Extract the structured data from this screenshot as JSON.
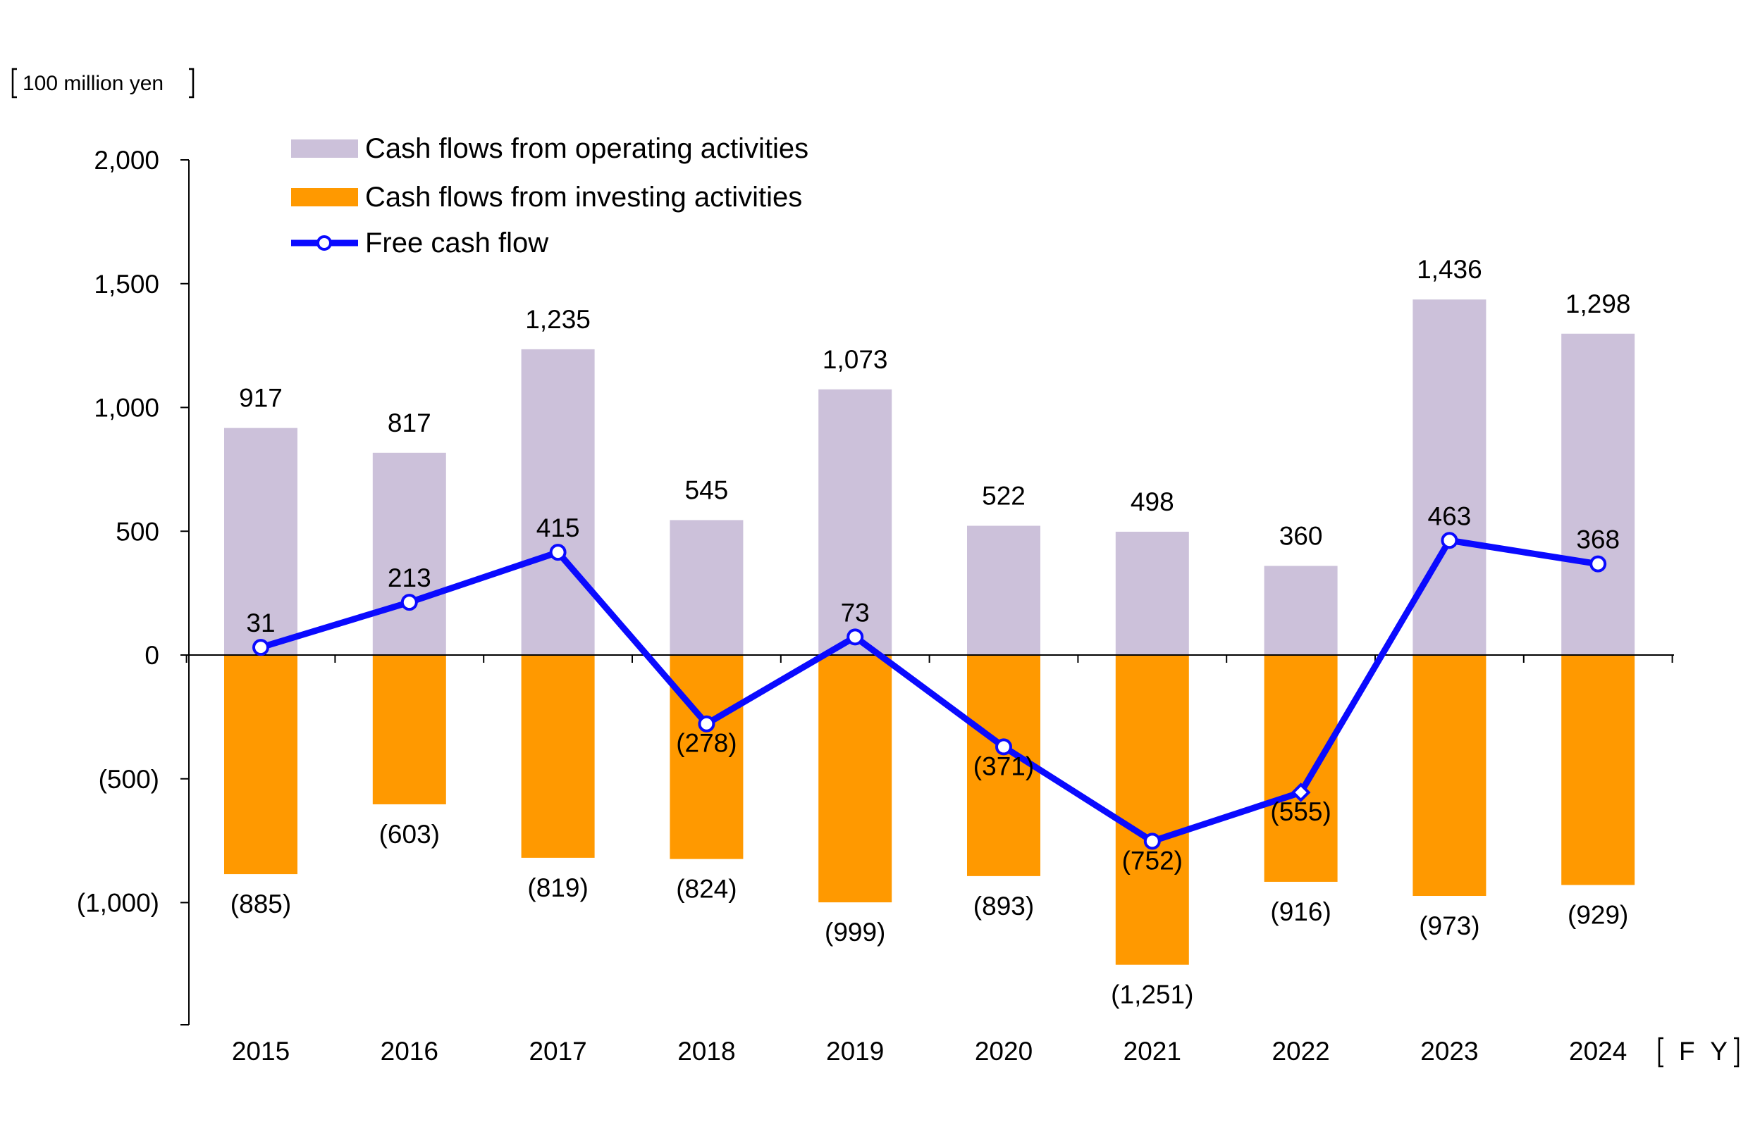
{
  "chart_data": {
    "type": "bar",
    "y_unit_label": "100 million yen",
    "x_unit_label": "F Y",
    "categories": [
      "2015",
      "2016",
      "2017",
      "2018",
      "2019",
      "2020",
      "2021",
      "2022",
      "2023",
      "2024"
    ],
    "ylim": [
      -1500,
      2000
    ],
    "yticks": [
      2000,
      1500,
      1000,
      500,
      0,
      -500,
      -1000
    ],
    "ytick_labels": [
      "2,000",
      "1,500",
      "1,000",
      "500",
      "0",
      "(500)",
      "(1,000)"
    ],
    "grid": false,
    "legend_placement": "top-left",
    "series": [
      {
        "name": "Cash flows from operating activities",
        "kind": "bar",
        "color": "#ccc1da",
        "values": [
          917,
          817,
          1235,
          545,
          1073,
          522,
          498,
          360,
          1436,
          1298
        ],
        "labels": [
          "917",
          "817",
          "1,235",
          "545",
          "1,073",
          "522",
          "498",
          "360",
          "1,436",
          "1,298"
        ]
      },
      {
        "name": "Cash flows from investing activities",
        "kind": "bar",
        "color": "#ff9900",
        "values": [
          -885,
          -603,
          -819,
          -824,
          -999,
          -893,
          -1251,
          -916,
          -973,
          -929
        ],
        "labels": [
          "(885)",
          "(603)",
          "(819)",
          "(824)",
          "(999)",
          "(893)",
          "(1,251)",
          "(916)",
          "(973)",
          "(929)"
        ]
      },
      {
        "name": "Free cash flow",
        "kind": "line",
        "color": "#0a0aff",
        "values": [
          31,
          213,
          415,
          -278,
          73,
          -371,
          -752,
          -555,
          463,
          368
        ],
        "labels": [
          "31",
          "213",
          "415",
          "(278)",
          "73",
          "(371)",
          "(752)",
          "(555)",
          "463",
          "368"
        ]
      }
    ]
  }
}
